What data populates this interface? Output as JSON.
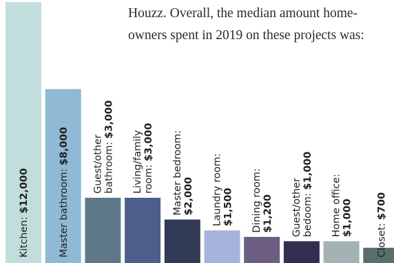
{
  "intro": {
    "line1": "Houzz. Overall, the median amount home-",
    "line2": "owners spent in 2019 on these projects was:"
  },
  "chart_data": {
    "type": "bar",
    "title": "",
    "xlabel": "",
    "ylabel": "",
    "ylim": [
      0,
      12000
    ],
    "bars": [
      {
        "lines": [
          "Kitchen: $12,000"
        ],
        "value": 12000,
        "color": "#c1dedd"
      },
      {
        "lines": [
          "Master bathroom: $8,000"
        ],
        "value": 8000,
        "color": "#8fb9d4"
      },
      {
        "lines": [
          "Guest/other",
          "bathroom: $3,000"
        ],
        "value": 3000,
        "color": "#5e7889"
      },
      {
        "lines": [
          "Living/family",
          "room: $3,000"
        ],
        "value": 3000,
        "color": "#4c5f8c"
      },
      {
        "lines": [
          "Master bedroom:",
          "$2,000"
        ],
        "value": 2000,
        "color": "#323b55"
      },
      {
        "lines": [
          "Laundry room:",
          "$1,500"
        ],
        "value": 1500,
        "color": "#a6b4dc"
      },
      {
        "lines": [
          "Dining room:",
          "$1,200"
        ],
        "value": 1200,
        "color": "#6c5f81"
      },
      {
        "lines": [
          "Guest/other",
          "bedoom: $1,000"
        ],
        "value": 1000,
        "color": "#342d4f"
      },
      {
        "lines": [
          "Home office:",
          "$1,000"
        ],
        "value": 1000,
        "color": "#a3b3b3"
      },
      {
        "lines": [
          "Closet: $700"
        ],
        "value": 700,
        "color": "#5a6e6e"
      }
    ]
  }
}
